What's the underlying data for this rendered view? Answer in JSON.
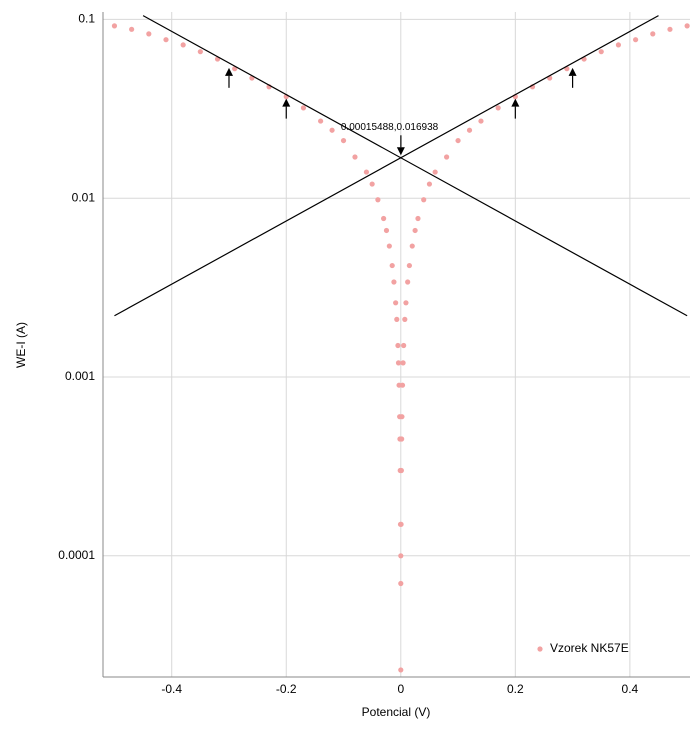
{
  "chart_data": {
    "type": "scatter",
    "x_label": "Potencial (V)",
    "y_label": "WE-I (A)",
    "xlim": [
      -0.52,
      0.505
    ],
    "ylim": [
      2.1e-05,
      0.11
    ],
    "xticks": [
      -0.4,
      -0.2,
      0,
      0.2,
      0.4
    ],
    "yticks": [
      0.1,
      0.01,
      0.001,
      0.0001
    ],
    "y_scale": "log",
    "grid": true,
    "legend": "lower right",
    "series": [
      {
        "name": "Vzorek NK57E",
        "color": "#f2a2a2",
        "x": [
          -0.5,
          -0.47,
          -0.44,
          -0.41,
          -0.38,
          -0.35,
          -0.32,
          -0.29,
          -0.26,
          -0.23,
          -0.2,
          -0.17,
          -0.14,
          -0.12,
          -0.1,
          -0.08,
          -0.06,
          -0.05,
          -0.04,
          -0.03,
          -0.025,
          -0.02,
          -0.015,
          -0.012,
          -0.009,
          -0.007,
          -0.005,
          -0.004,
          -0.003,
          -0.002,
          -0.0015,
          -0.001,
          -0.0005,
          0,
          0,
          0,
          0.0005,
          0.001,
          0.0015,
          0.002,
          0.003,
          0.004,
          0.005,
          0.007,
          0.009,
          0.012,
          0.015,
          0.02,
          0.025,
          0.03,
          0.04,
          0.05,
          0.06,
          0.08,
          0.1,
          0.12,
          0.14,
          0.17,
          0.2,
          0.23,
          0.26,
          0.29,
          0.32,
          0.35,
          0.38,
          0.41,
          0.44,
          0.47,
          0.5
        ],
        "values": [
          0.092,
          0.088,
          0.083,
          0.077,
          0.072,
          0.066,
          0.06,
          0.053,
          0.047,
          0.042,
          0.037,
          0.032,
          0.027,
          0.024,
          0.021,
          0.017,
          0.014,
          0.012,
          0.0098,
          0.0077,
          0.0066,
          0.0054,
          0.0042,
          0.0034,
          0.0026,
          0.0021,
          0.0015,
          0.0012,
          0.0009,
          0.0006,
          0.00045,
          0.0003,
          0.00015,
          0.0001,
          7e-05,
          2.3e-05,
          0.00015,
          0.0003,
          0.00045,
          0.0006,
          0.0009,
          0.0012,
          0.0015,
          0.0021,
          0.0026,
          0.0034,
          0.0042,
          0.0054,
          0.0066,
          0.0077,
          0.0098,
          0.012,
          0.014,
          0.017,
          0.021,
          0.024,
          0.027,
          0.032,
          0.037,
          0.042,
          0.047,
          0.053,
          0.06,
          0.066,
          0.072,
          0.077,
          0.083,
          0.088,
          0.092
        ]
      }
    ],
    "fit_lines": [
      {
        "color": "#000000",
        "x": [
          -0.45,
          0.5
        ],
        "values": [
          0.105,
          0.0022
        ]
      },
      {
        "color": "#000000",
        "x": [
          -0.5,
          0.45
        ],
        "values": [
          0.0022,
          0.105
        ]
      }
    ],
    "arrows": [
      {
        "x": -0.3,
        "y": 0.055,
        "direction": "up"
      },
      {
        "x": -0.2,
        "y": 0.037,
        "direction": "up"
      },
      {
        "x": 0.2,
        "y": 0.037,
        "direction": "up"
      },
      {
        "x": 0.3,
        "y": 0.055,
        "direction": "up"
      },
      {
        "x": 0.00015488,
        "y": 0.016938,
        "direction": "down",
        "label": "0.00015488,0.016938"
      }
    ]
  }
}
